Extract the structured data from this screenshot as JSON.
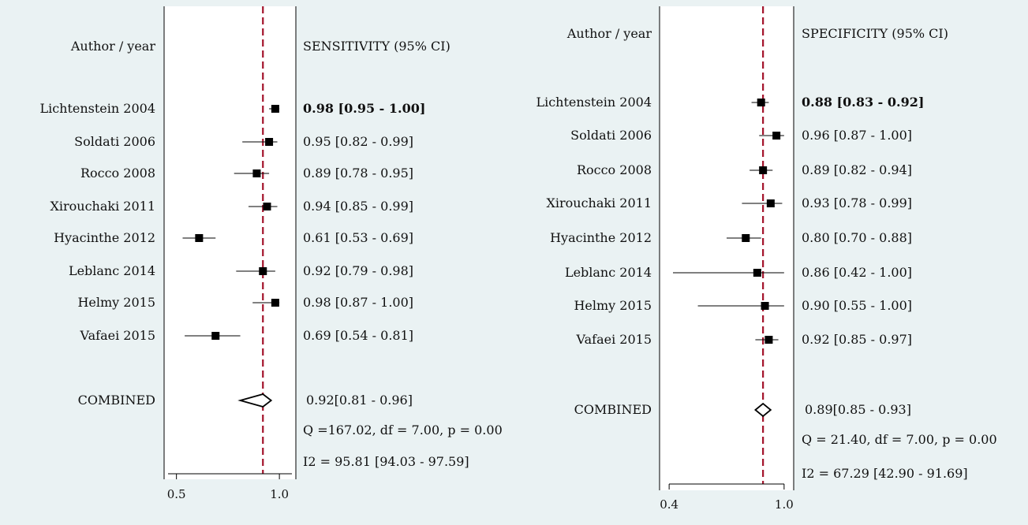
{
  "chart_data": [
    {
      "type": "forest",
      "header_left": "Author / year",
      "header_right": "SENSITIVITY (95% CI)",
      "studies": [
        {
          "label": "Lichtenstein 2004",
          "value": 0.98,
          "lo": 0.95,
          "hi": 1.0,
          "text": "0.98 [0.95 - 1.00]",
          "bold": true
        },
        {
          "label": "Soldati 2006",
          "value": 0.95,
          "lo": 0.82,
          "hi": 0.99,
          "text": "0.95 [0.82 - 0.99]"
        },
        {
          "label": "Rocco 2008",
          "value": 0.89,
          "lo": 0.78,
          "hi": 0.95,
          "text": "0.89 [0.78 - 0.95]"
        },
        {
          "label": "Xirouchaki 2011",
          "value": 0.94,
          "lo": 0.85,
          "hi": 0.99,
          "text": "0.94 [0.85 - 0.99]"
        },
        {
          "label": "Hyacinthe 2012",
          "value": 0.61,
          "lo": 0.53,
          "hi": 0.69,
          "text": "0.61 [0.53 - 0.69]"
        },
        {
          "label": "Leblanc 2014",
          "value": 0.92,
          "lo": 0.79,
          "hi": 0.98,
          "text": "0.92 [0.79 - 0.98]"
        },
        {
          "label": "Helmy 2015",
          "value": 0.98,
          "lo": 0.87,
          "hi": 1.0,
          "text": "0.98 [0.87 - 1.00]"
        },
        {
          "label": "Vafaei 2015",
          "value": 0.69,
          "lo": 0.54,
          "hi": 0.81,
          "text": "0.69 [0.54 - 0.81]"
        }
      ],
      "combined": {
        "label": "COMBINED",
        "value": 0.92,
        "lo": 0.81,
        "hi": 0.96,
        "text": "0.92[0.81 - 0.96]"
      },
      "heterogeneity": [
        "Q =167.02, df = 7.00, p =  0.00",
        "I2 = 95.81 [94.03 - 97.59]"
      ],
      "xlim": [
        0.44,
        1.08
      ],
      "ticks": [
        {
          "value": 0.5,
          "label": "0.5"
        },
        {
          "value": 1.0,
          "label": "1.0"
        }
      ],
      "reference_line": 0.92
    },
    {
      "type": "forest",
      "header_left": "Author / year",
      "header_right": "SPECIFICITY (95% CI)",
      "studies": [
        {
          "label": "Lichtenstein 2004",
          "value": 0.88,
          "lo": 0.83,
          "hi": 0.92,
          "text": "0.88 [0.83 - 0.92]",
          "bold": true
        },
        {
          "label": "Soldati 2006",
          "value": 0.96,
          "lo": 0.87,
          "hi": 1.0,
          "text": "0.96 [0.87 - 1.00]"
        },
        {
          "label": "Rocco 2008",
          "value": 0.89,
          "lo": 0.82,
          "hi": 0.94,
          "text": "0.89 [0.82 - 0.94]"
        },
        {
          "label": "Xirouchaki 2011",
          "value": 0.93,
          "lo": 0.78,
          "hi": 0.99,
          "text": "0.93 [0.78 - 0.99]"
        },
        {
          "label": "Hyacinthe 2012",
          "value": 0.8,
          "lo": 0.7,
          "hi": 0.88,
          "text": "0.80 [0.70 - 0.88]"
        },
        {
          "label": "Leblanc 2014",
          "value": 0.86,
          "lo": 0.42,
          "hi": 1.0,
          "text": "0.86 [0.42 - 1.00]"
        },
        {
          "label": "Helmy 2015",
          "value": 0.9,
          "lo": 0.55,
          "hi": 1.0,
          "text": "0.90 [0.55 - 1.00]"
        },
        {
          "label": "Vafaei 2015",
          "value": 0.92,
          "lo": 0.85,
          "hi": 0.97,
          "text": "0.92 [0.85 - 0.97]"
        }
      ],
      "combined": {
        "label": "COMBINED",
        "value": 0.89,
        "lo": 0.85,
        "hi": 0.93,
        "text": "0.89[0.85 - 0.93]"
      },
      "heterogeneity": [
        "Q = 21.40, df = 7.00, p =  0.00",
        "I2 = 67.29 [42.90 - 91.69]"
      ],
      "xlim": [
        0.35,
        1.05
      ],
      "ticks": [
        {
          "value": 0.4,
          "label": "0.4"
        },
        {
          "value": 1.0,
          "label": "1.0"
        }
      ],
      "reference_line": 0.89
    }
  ]
}
